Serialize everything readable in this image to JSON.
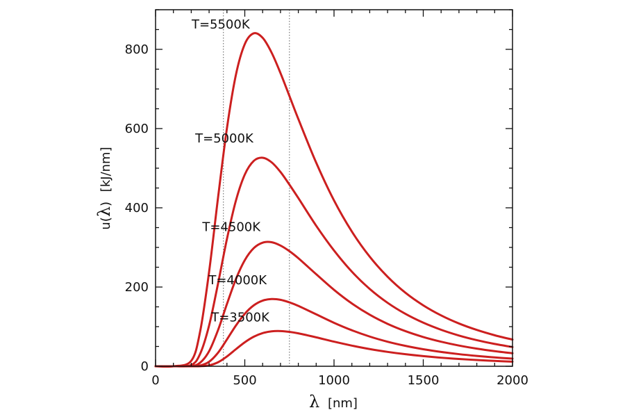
{
  "chart_data": {
    "type": "line",
    "xlabel_symbol": "λ",
    "xlabel_unit": "[nm]",
    "ylabel_prefix": "u(",
    "ylabel_symbol": "λ",
    "ylabel_suffix": ")",
    "ylabel_unit": "[kJ/nm]",
    "xlim": [
      0,
      2000
    ],
    "ylim": [
      0,
      900
    ],
    "x_ticks": [
      0,
      500,
      1000,
      1500,
      2000
    ],
    "y_ticks": [
      0,
      200,
      400,
      600,
      800
    ],
    "reference_lines_x": [
      380,
      750
    ],
    "grid": false,
    "line_color": "#cc1f1f",
    "reference_line_color": "#777777",
    "x": [
      0,
      100,
      200,
      250,
      300,
      350,
      400,
      450,
      500,
      550,
      600,
      650,
      700,
      750,
      800,
      900,
      1000,
      1100,
      1200,
      1300,
      1400,
      1500,
      1600,
      1700,
      1800,
      1900,
      2000
    ],
    "series": [
      {
        "name": "T=3500K",
        "values": [
          0,
          0,
          0.002,
          0.2,
          2.3,
          10.1,
          24.7,
          43.0,
          60.6,
          74.6,
          83.7,
          88.2,
          88.9,
          86.9,
          83.1,
          73.0,
          62.1,
          52.1,
          43.4,
          36.3,
          30.4,
          25.6,
          21.6,
          18.4,
          15.8,
          13.5,
          11.7
        ]
      },
      {
        "name": "T=4000K",
        "values": [
          0,
          0,
          0.06,
          1.9,
          11.4,
          34.2,
          67.7,
          102.7,
          132.5,
          153.7,
          165.7,
          169.7,
          167.7,
          161.3,
          152.4,
          131.1,
          109.7,
          90.9,
          75.0,
          62.0,
          51.5,
          43.0,
          36.2,
          30.6,
          26.1,
          22.3,
          19.3
        ]
      },
      {
        "name": "T=4500K",
        "values": [
          0,
          0,
          0.6,
          9.1,
          38.0,
          91.2,
          157.2,
          219.7,
          267.8,
          298.1,
          312.0,
          313.1,
          304.7,
          290.6,
          272.8,
          232.4,
          192.9,
          158.5,
          130.1,
          107.1,
          88.7,
          73.9,
          62.0,
          52.3,
          44.5,
          38.1,
          32.8
        ]
      },
      {
        "name": "T=5000K",
        "values": [
          0,
          0,
          3.3,
          31.6,
          102.8,
          208.5,
          321.4,
          417.8,
          483.9,
          518.3,
          526.4,
          514.9,
          490.4,
          458.6,
          424.6,
          354.7,
          292.2,
          238.8,
          195.2,
          160.2,
          132.3,
          110.0,
          92.1,
          77.6,
          65.9,
          56.3,
          48.5
        ]
      },
      {
        "name": "T=5500K",
        "values": [
          0,
          0,
          13.8,
          88.3,
          238.5,
          425.3,
          601.0,
          735.3,
          813.3,
          840.4,
          829.1,
          791.9,
          740.1,
          682.4,
          624.2,
          514.0,
          418.5,
          340.0,
          276.6,
          226.0,
          185.6,
          153.8,
          128.4,
          108.0,
          91.7,
          78.3,
          67.3
        ]
      }
    ],
    "curve_labels": [
      {
        "text": "T=5500K",
        "x": 365,
        "y": 853
      },
      {
        "text": "T=5000K",
        "x": 385,
        "y": 565
      },
      {
        "text": "T=4500K",
        "x": 425,
        "y": 341
      },
      {
        "text": "T=4000K",
        "x": 460,
        "y": 207
      },
      {
        "text": "T=3500K",
        "x": 475,
        "y": 113
      }
    ]
  }
}
